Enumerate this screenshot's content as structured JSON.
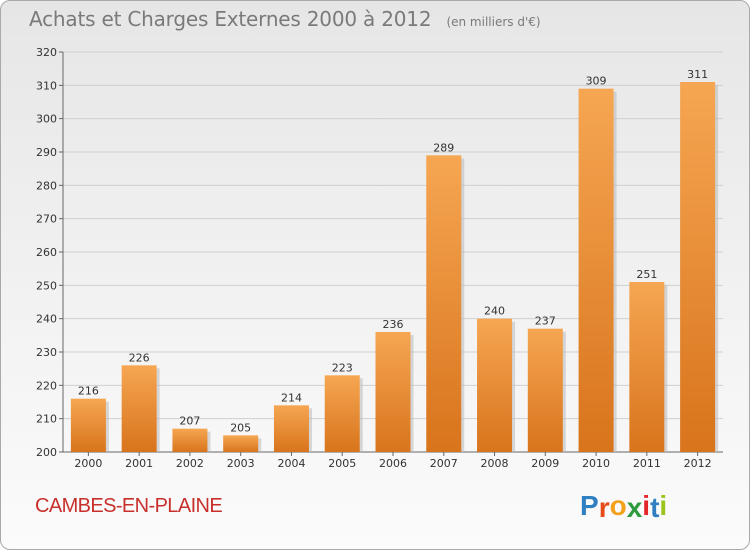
{
  "chart_title": "Achats et Charges Externes 2000 à 2012",
  "chart_subtitle": "(en milliers d'€)",
  "commune": "CAMBES-EN-PLAINE",
  "logo": {
    "text": "Proxiti",
    "letter_colors": [
      "#2f7fc1",
      "#e64a19",
      "#f2a21a",
      "#2e9a3e",
      "#e6252a",
      "#2f7fc1",
      "#9ac31c"
    ]
  },
  "colors": {
    "bar_light": "#f6a652",
    "bar_dark": "#d8741c",
    "commune": "#c8302c"
  },
  "chart_data": {
    "type": "bar",
    "title": "Achats et Charges Externes 2000 à 2012",
    "subtitle": "(en milliers d'€)",
    "xlabel": "",
    "ylabel": "",
    "categories": [
      "2000",
      "2001",
      "2002",
      "2003",
      "2004",
      "2005",
      "2006",
      "2007",
      "2008",
      "2009",
      "2010",
      "2011",
      "2012"
    ],
    "values": [
      216,
      226,
      207,
      205,
      214,
      223,
      236,
      289,
      240,
      237,
      309,
      251,
      311
    ],
    "ylim": [
      200,
      320
    ],
    "yticks": [
      200,
      210,
      220,
      230,
      240,
      250,
      260,
      270,
      280,
      290,
      300,
      310,
      320
    ],
    "grid": true,
    "legend": "none"
  }
}
